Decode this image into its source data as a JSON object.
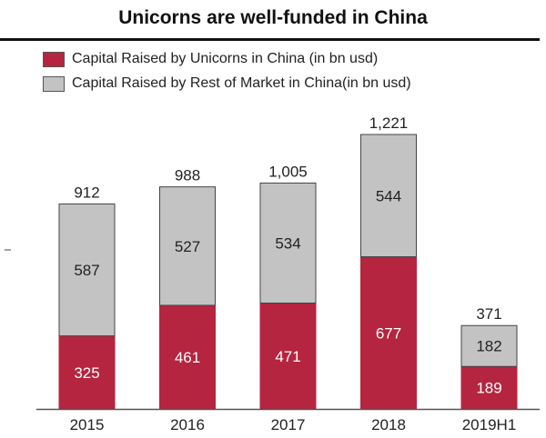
{
  "chart_data": {
    "type": "bar",
    "stacked": true,
    "title": "Unicorns are well-funded in China",
    "categories": [
      "2015",
      "2016",
      "2017",
      "2018",
      "2019H1"
    ],
    "series": [
      {
        "name": "Capital Raised by Unicorns in China (in bn usd)",
        "color": "#b5253f",
        "values": [
          325,
          461,
          471,
          677,
          189
        ]
      },
      {
        "name": "Capital Raised by Rest of Market in China(in bn usd)",
        "color": "#c3c3c3",
        "values": [
          587,
          527,
          534,
          544,
          182
        ]
      }
    ],
    "totals": [
      "912",
      "988",
      "1,005",
      "1,221",
      "371"
    ],
    "ylim": [
      0,
      1221
    ],
    "grid": false,
    "legend": "top-left"
  }
}
